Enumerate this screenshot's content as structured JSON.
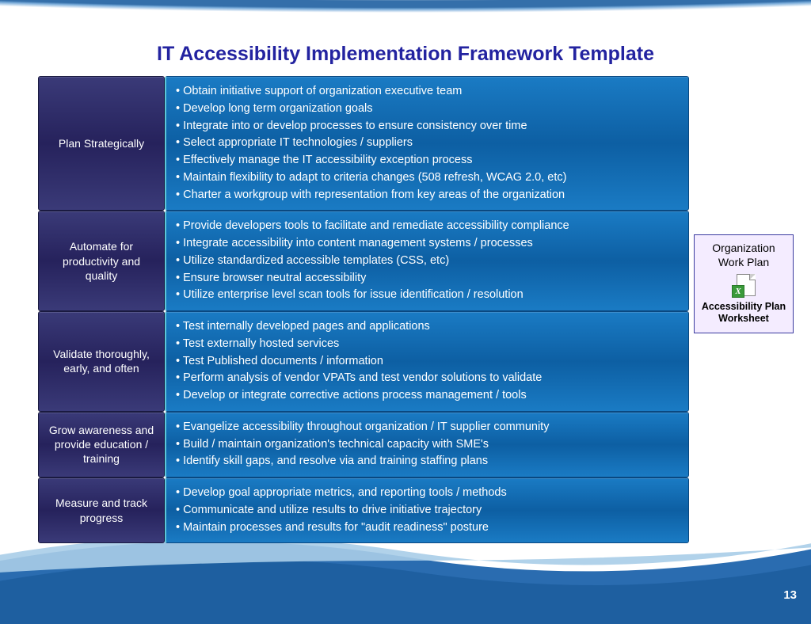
{
  "title": "IT Accessibility Implementation Framework Template",
  "page_number": "13",
  "colors": {
    "title_color": "#2323a0",
    "category_bg_top": "#3a3a78",
    "category_bg_mid": "#26225c",
    "items_bg_top": "#1a7bc4",
    "items_bg_mid": "#0d5fa3",
    "accent_border": "#5cc6d8",
    "wave_dark": "#1e5fa0",
    "wave_light": "#6ba3d6",
    "callout_bg": "#f4ecff",
    "callout_border": "#3a3aa0"
  },
  "rows": [
    {
      "category": "Plan Strategically",
      "items": [
        "Obtain initiative support of organization executive team",
        "Develop long term organization goals",
        "Integrate into or develop processes to ensure consistency over time",
        "Select appropriate IT technologies / suppliers",
        "Effectively manage the IT accessibility exception process",
        "Maintain flexibility to adapt to criteria changes (508 refresh, WCAG 2.0, etc)",
        "Charter a workgroup with representation from key areas of the organization"
      ]
    },
    {
      "category": "Automate for productivity and quality",
      "items": [
        "Provide developers tools to facilitate and remediate accessibility compliance",
        "Integrate accessibility into content management systems / processes",
        "Utilize standardized accessible templates (CSS, etc)",
        "Ensure browser neutral accessibility",
        "Utilize enterprise level scan tools for issue identification / resolution"
      ]
    },
    {
      "category": "Validate thoroughly, early, and often",
      "items": [
        "Test internally developed pages and applications",
        "Test  externally hosted services",
        "Test Published documents / information",
        "Perform analysis of vendor VPATs and test vendor solutions to validate",
        "Develop or integrate corrective actions process management / tools"
      ]
    },
    {
      "category": "Grow awareness and provide education / training",
      "items": [
        "Evangelize accessibility throughout organization / IT  supplier community",
        "Build / maintain organization's  technical capacity with SME's",
        "Identify skill gaps, and resolve via and training staffing plans"
      ]
    },
    {
      "category": "Measure and track progress",
      "items": [
        "Develop goal appropriate metrics, and reporting tools / methods",
        "Communicate and utilize results to drive initiative trajectory",
        "Maintain processes and results for \"audit readiness\" posture"
      ]
    }
  ],
  "callout": {
    "title": "Organization Work Plan",
    "subtitle": "Accessibility Plan Worksheet",
    "icon": "excel-document-icon"
  }
}
